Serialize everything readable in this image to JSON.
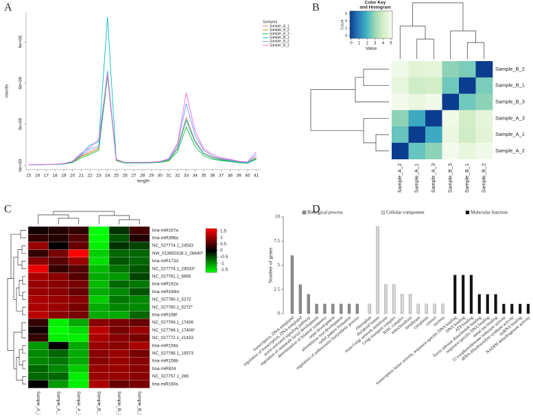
{
  "chart_data": [
    {
      "type": "line",
      "panel": "A",
      "x": [
        15,
        16,
        17,
        18,
        19,
        20,
        21,
        22,
        23,
        24,
        25,
        26,
        27,
        28,
        29,
        30,
        31,
        32,
        33,
        34,
        35,
        36,
        37,
        38,
        39,
        40,
        41
      ],
      "xlim": [
        14.7,
        41.5
      ],
      "ylim": [
        -300000,
        11150000
      ],
      "yticks": [
        {
          "value": 0,
          "label": "0e+00"
        },
        {
          "value": 3000000,
          "label": "3e+06"
        },
        {
          "value": 6000000,
          "label": "6e+06"
        },
        {
          "value": 9000000,
          "label": "9e+06"
        }
      ],
      "x_label": "length",
      "y_label": "counts",
      "legend_title": "Samples",
      "series": [
        {
          "name": "Sample_A_1",
          "color": "#F8766D",
          "values": [
            50000,
            60000,
            70000,
            80000,
            120000,
            250000,
            700000,
            1000000,
            1300000,
            6700000,
            400000,
            200000,
            200000,
            200000,
            220000,
            250000,
            400000,
            1300000,
            3500000,
            1800000,
            900000,
            600000,
            450000,
            350000,
            250000,
            200000,
            600000
          ]
        },
        {
          "name": "Sample_A_2",
          "color": "#B79F00",
          "values": [
            50000,
            60000,
            70000,
            80000,
            110000,
            230000,
            650000,
            900000,
            1200000,
            6800000,
            380000,
            190000,
            190000,
            190000,
            210000,
            240000,
            380000,
            1200000,
            3300000,
            1700000,
            850000,
            550000,
            420000,
            330000,
            240000,
            190000,
            550000
          ]
        },
        {
          "name": "Sample_A_3",
          "color": "#00BA38",
          "values": [
            40000,
            50000,
            60000,
            70000,
            100000,
            200000,
            550000,
            800000,
            1100000,
            6500000,
            350000,
            170000,
            170000,
            170000,
            190000,
            220000,
            330000,
            1000000,
            2800000,
            1400000,
            700000,
            450000,
            350000,
            280000,
            200000,
            160000,
            450000
          ]
        },
        {
          "name": "Sample_B_1",
          "color": "#00BFC4",
          "values": [
            50000,
            60000,
            70000,
            90000,
            130000,
            280000,
            800000,
            1500000,
            1700000,
            10800000,
            450000,
            210000,
            210000,
            210000,
            230000,
            260000,
            420000,
            1200000,
            3300000,
            1700000,
            850000,
            550000,
            400000,
            320000,
            240000,
            190000,
            500000
          ]
        },
        {
          "name": "Sample_B_2",
          "color": "#619CFF",
          "values": [
            50000,
            60000,
            70000,
            85000,
            120000,
            260000,
            750000,
            1200000,
            1400000,
            6900000,
            420000,
            210000,
            210000,
            210000,
            230000,
            270000,
            450000,
            1500000,
            4500000,
            2200000,
            1100000,
            700000,
            500000,
            400000,
            280000,
            220000,
            800000
          ]
        },
        {
          "name": "Sample_B_3",
          "color": "#F564E3",
          "values": [
            50000,
            60000,
            75000,
            90000,
            140000,
            300000,
            900000,
            1300000,
            1900000,
            6600000,
            430000,
            220000,
            220000,
            220000,
            240000,
            290000,
            500000,
            1600000,
            5300000,
            2500000,
            1200000,
            800000,
            550000,
            450000,
            300000,
            250000,
            1000000
          ]
        }
      ]
    },
    {
      "type": "heatmap",
      "panel": "B",
      "rows": [
        "Sample_B_2",
        "Sample_B_1",
        "Sample_B_3",
        "Sample_A_3",
        "Sample_A_1",
        "Sample_A_2"
      ],
      "columns": [
        "Sample_A_2",
        "Sample_A_1",
        "Sample_A_3",
        "Sample_B_3",
        "Sample_B_1",
        "Sample_B_2"
      ],
      "values": [
        [
          4.8,
          4.3,
          4.4,
          2.8,
          2.6,
          0
        ],
        [
          4.5,
          3.8,
          3.9,
          2.5,
          0,
          2.6
        ],
        [
          4.9,
          4.6,
          4.8,
          0,
          2.5,
          2.8
        ],
        [
          2.8,
          1.8,
          0,
          4.8,
          3.9,
          4.4
        ],
        [
          2.4,
          0,
          1.8,
          4.6,
          3.8,
          4.3
        ],
        [
          0,
          2.4,
          2.8,
          4.9,
          4.5,
          4.8
        ]
      ],
      "zlim": [
        0,
        5
      ],
      "colorscale": [
        "#0b3d8f",
        "#2b7bbb",
        "#41b6c4",
        "#a1dab4",
        "#d9f0c9",
        "#f7fcf0"
      ],
      "key_title": [
        "Color Key",
        "and Histogram"
      ],
      "key_label": "Value",
      "key_ticks": [
        0,
        1,
        2,
        3,
        4,
        5
      ],
      "hist_label": "Count",
      "hist_ticks": [
        0,
        2,
        4,
        6
      ]
    },
    {
      "type": "heatmap",
      "panel": "C",
      "rows": [
        "bna-miR167a",
        "bna-miR396a",
        "NC_027774.1_24533",
        "NW_013650328.1_26640*",
        "bna-miR172d",
        "NC_027774.1_24533*",
        "NC_027761.1_6665",
        "bna-miR162a",
        "bna-miR169m",
        "NC_027760.1_5272",
        "NC_027760.1_5272*",
        "bna-miR168f",
        "NC_027769.1_17406",
        "NC_027769.1_17406*",
        "NC_027772.1_21433",
        "bna-miR156a",
        "NC_027768.1_15573",
        "bna-miR156b",
        "bna-miR824",
        "NC_027757.1_266",
        "bna-miR160a"
      ],
      "columns": [
        "Sample_A_2_TPM",
        "Sample_A_1_TPM",
        "Sample_A_3_TPM",
        "Sample_B_1_TPM",
        "Sample_B_2_TPM",
        "Sample_B_3_TPM"
      ],
      "values": [
        [
          0.1,
          0.2,
          0.3,
          -1.6,
          -0.3,
          0.4
        ],
        [
          0.3,
          0.2,
          0.5,
          -1.5,
          -0.5,
          0.2
        ],
        [
          0.9,
          0,
          0.6,
          -1.4,
          -0.3,
          -0.4
        ],
        [
          0.3,
          0.7,
          1.5,
          -1.2,
          -0.6,
          -0.6
        ],
        [
          0.8,
          0.5,
          0.9,
          -1.3,
          -0.5,
          -0.6
        ],
        [
          1.4,
          0.3,
          0.5,
          -1.1,
          -0.7,
          -0.5
        ],
        [
          1.0,
          0.8,
          0.5,
          -1.0,
          -0.9,
          -0.4
        ],
        [
          0.9,
          0.8,
          0.7,
          -1.1,
          -0.6,
          -0.7
        ],
        [
          0.9,
          0.8,
          0.6,
          -1.0,
          -0.8,
          -0.5
        ],
        [
          1.0,
          0.9,
          0.8,
          -1.2,
          -0.7,
          -0.8
        ],
        [
          1.0,
          0.9,
          0.7,
          -1.0,
          -0.8,
          -0.8
        ],
        [
          1.1,
          0.8,
          0.7,
          -1.0,
          -1.0,
          -0.6
        ],
        [
          0.3,
          -1.4,
          -1.0,
          0.8,
          0.7,
          0.6
        ],
        [
          0.1,
          -1.5,
          -1.3,
          1.1,
          0.7,
          0.9
        ],
        [
          0.3,
          -1.4,
          -1.4,
          1.0,
          0.8,
          0.7
        ],
        [
          -0.9,
          0.0,
          -1.0,
          0.9,
          0.8,
          1.0
        ],
        [
          -0.8,
          -0.6,
          -1.0,
          0.8,
          0.9,
          0.7
        ],
        [
          -0.8,
          -0.7,
          -1.0,
          0.8,
          0.9,
          0.8
        ],
        [
          -0.6,
          -0.8,
          -1.2,
          0.9,
          0.9,
          0.8
        ],
        [
          -0.6,
          -0.6,
          -1.4,
          0.9,
          0.9,
          0.8
        ],
        [
          0.0,
          -0.9,
          -1.4,
          1.0,
          0.6,
          0.7
        ]
      ],
      "zlim": [
        -1.5,
        1.5
      ],
      "colorscale": [
        "#00ff00",
        "#000000",
        "#ff0000"
      ],
      "key_ticks": [
        1.5,
        1,
        0.5,
        0,
        -0.5,
        -1,
        -1.5
      ]
    },
    {
      "type": "bar",
      "panel": "D",
      "categories": [
        "transcription, DNA-templated",
        "regulation of transcription, DNA-templated",
        "auxin-activated signaling pathway",
        "regulation of nematode larval development",
        "determination of bilateral symmetry",
        "sepal development",
        "adventitious root development",
        "radial pattern formation",
        "regulation of anthocyanin biosynthetic process",
        "chloroplast",
        "thylakoid lumen",
        "trans-Golgi network membrane",
        "Golgi transport complex",
        "RISC complex",
        "mitochondrion",
        "membrane",
        "cytoplasm",
        "cytosol",
        "nucleus",
        "transcription factor activity, sequence-specific DNA binding",
        "DNA binding",
        "ATP binding",
        "flavin adenine dinucleotide binding",
        "sequence-specific DNA binding",
        "metal ion binding",
        "12-oxophytodienoate reductase activity",
        "tRNA dihydrouridine synthase activity",
        "miRNA binding",
        "NADPH dehydrogenase activity"
      ],
      "series": [
        {
          "name": "Biological process",
          "color": "#8a8a8a",
          "values": [
            6,
            3,
            2,
            1,
            1,
            1,
            1,
            1,
            1,
            null,
            null,
            null,
            null,
            null,
            null,
            null,
            null,
            null,
            null,
            null,
            null,
            null,
            null,
            null,
            null,
            null,
            null,
            null,
            null
          ]
        },
        {
          "name": "Cellular component",
          "color": "#d6d6d6",
          "values": [
            null,
            null,
            null,
            null,
            null,
            null,
            null,
            null,
            null,
            1,
            9,
            3,
            3,
            2,
            2,
            1,
            1,
            1,
            1,
            null,
            null,
            null,
            null,
            null,
            null,
            null,
            null,
            null,
            null
          ]
        },
        {
          "name": "Molecular function",
          "color": "#111111",
          "values": [
            null,
            null,
            null,
            null,
            null,
            null,
            null,
            null,
            null,
            null,
            null,
            null,
            null,
            null,
            null,
            null,
            null,
            null,
            null,
            4,
            4,
            4,
            2,
            2,
            2,
            1,
            1,
            1,
            1
          ]
        }
      ],
      "ylim": [
        0,
        10
      ],
      "yticks": [
        0,
        2.5,
        5,
        7.5,
        10
      ],
      "y_label": "Number of genes"
    }
  ]
}
